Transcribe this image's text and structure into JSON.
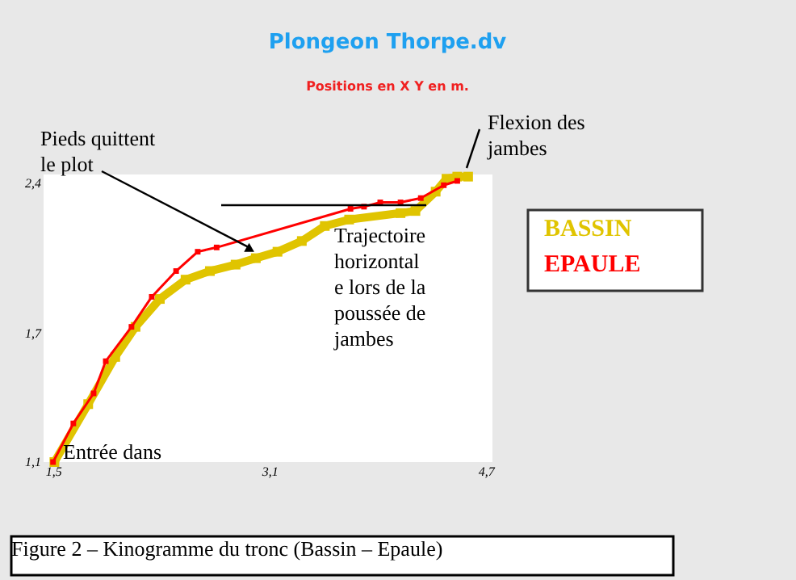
{
  "chart_data": {
    "type": "line",
    "title": "Plongeon Thorpe.dv",
    "subtitle": "Positions en X Y en m.",
    "xlim": [
      1.43,
      4.75
    ],
    "ylim": [
      1.1,
      2.44
    ],
    "xticks": [
      {
        "value": 1.5,
        "label": "1,5"
      },
      {
        "value": 3.1,
        "label": "3,1"
      },
      {
        "value": 4.7,
        "label": "4,7"
      }
    ],
    "yticks": [
      {
        "value": 1.1,
        "label": "1,1"
      },
      {
        "value": 1.7,
        "label": "1,7"
      },
      {
        "value": 2.4,
        "label": "2,4"
      }
    ],
    "grid": false,
    "legend": "right",
    "marker": "square",
    "line_style": "solid",
    "series": [
      {
        "name": "BASSIN",
        "color": "#e0c400",
        "x": [
          4.57,
          4.49,
          4.41,
          4.33,
          4.18,
          4.07,
          3.69,
          3.51,
          3.34,
          3.16,
          3.0,
          2.85,
          2.66,
          2.48,
          2.29,
          2.11,
          1.96,
          1.76,
          1.51
        ],
        "values": [
          2.43,
          2.43,
          2.42,
          2.36,
          2.27,
          2.26,
          2.23,
          2.2,
          2.13,
          2.08,
          2.05,
          2.02,
          1.99,
          1.95,
          1.86,
          1.73,
          1.59,
          1.37,
          1.1
        ]
      },
      {
        "name": "EPAULE",
        "color": "#ff0000",
        "x": [
          4.49,
          4.39,
          4.22,
          4.07,
          3.92,
          3.8,
          3.7,
          2.71,
          2.57,
          2.41,
          2.23,
          2.08,
          1.89,
          1.8,
          1.65,
          1.5
        ],
        "values": [
          2.41,
          2.39,
          2.33,
          2.31,
          2.31,
          2.29,
          2.28,
          2.1,
          2.08,
          1.99,
          1.87,
          1.73,
          1.57,
          1.42,
          1.28,
          1.1
        ]
      }
    ],
    "annotations": [
      {
        "text": "Pieds quittent le plot",
        "x": 2.95,
        "y": 2.1
      },
      "Flexion des jambes",
      "Trajectoire horizontal e lors de la poussée de jambes",
      "Entrée dans",
      "Figure 2 – Kinogramme du tronc (Bassin – Epaule)"
    ]
  }
}
